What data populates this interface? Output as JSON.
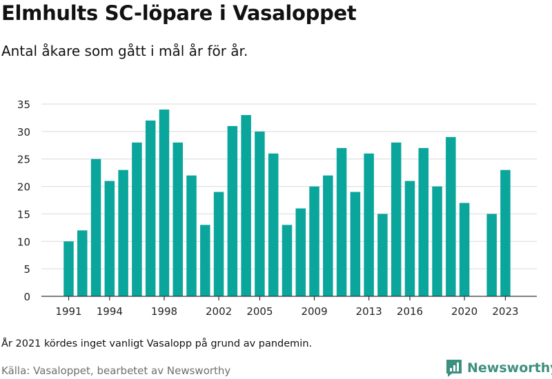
{
  "header": {
    "title": "Elmhults SC-löpare i Vasaloppet",
    "subtitle": "Antal åkare som gått i mål år för år."
  },
  "footer": {
    "note": "År 2021 kördes inget vanligt Vasalopp på grund av pandemin.",
    "source": "Källa: Vasaloppet, bearbetet av Newsworthy",
    "logo_text": "Newsworthy"
  },
  "colors": {
    "bar": "#0aa59b",
    "grid": "#d9d9d9",
    "logo": "#3d8f7f"
  },
  "chart_data": {
    "type": "bar",
    "title": "Elmhults SC-löpare i Vasaloppet",
    "subtitle": "Antal åkare som gått i mål år för år.",
    "categories": [
      1991,
      1992,
      1993,
      1994,
      1995,
      1996,
      1997,
      1998,
      1999,
      2000,
      2001,
      2002,
      2003,
      2004,
      2005,
      2006,
      2007,
      2008,
      2009,
      2010,
      2011,
      2012,
      2013,
      2014,
      2015,
      2016,
      2017,
      2018,
      2019,
      2020,
      2021,
      2022,
      2023
    ],
    "values": [
      10,
      12,
      25,
      21,
      23,
      28,
      32,
      34,
      28,
      22,
      13,
      19,
      31,
      33,
      30,
      26,
      13,
      16,
      20,
      22,
      27,
      19,
      26,
      15,
      28,
      21,
      27,
      20,
      29,
      17,
      null,
      15,
      23
    ],
    "x_tick_labels": [
      "1991",
      "1994",
      "1998",
      "2002",
      "2005",
      "2009",
      "2013",
      "2016",
      "2020",
      "2023"
    ],
    "y_ticks": [
      0,
      5,
      10,
      15,
      20,
      25,
      30,
      35
    ],
    "ylim": [
      0,
      35
    ],
    "grid": true,
    "xlabel": "",
    "ylabel": ""
  }
}
